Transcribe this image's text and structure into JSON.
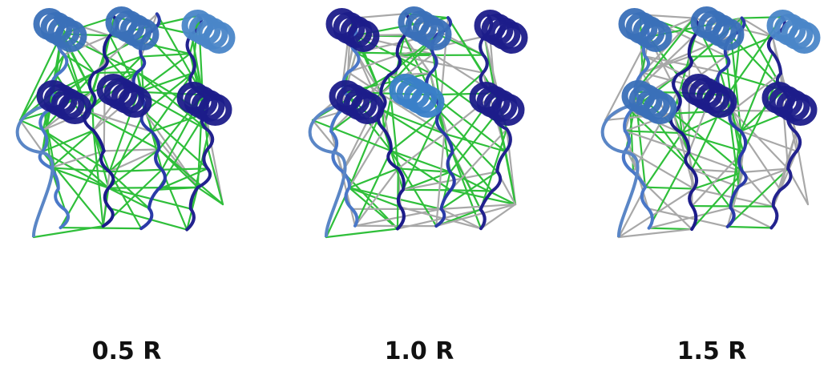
{
  "panels": [
    {
      "label": "0.5 R"
    },
    {
      "label": "1.0 R"
    },
    {
      "label": "1.5 R"
    }
  ]
}
